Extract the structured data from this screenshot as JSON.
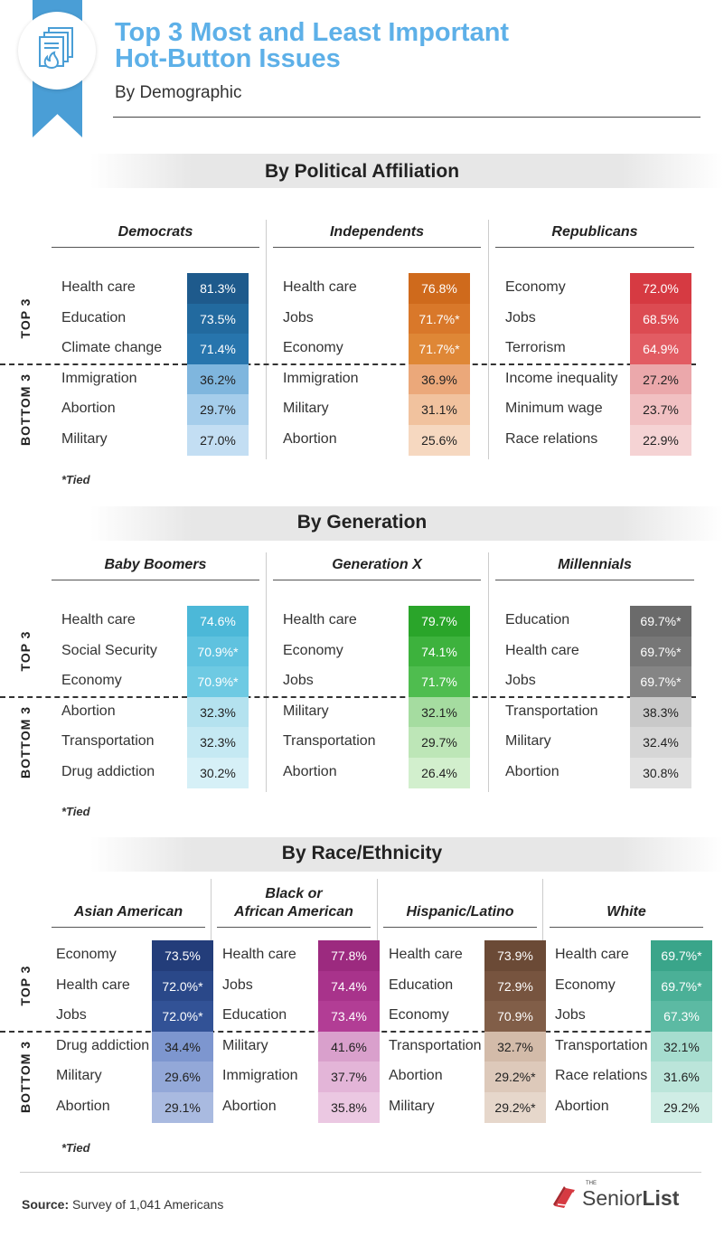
{
  "header": {
    "title_line1": "Top 3 Most and Least Important",
    "title_line2": "Hot-Button Issues",
    "subtitle": "By Demographic",
    "icon": "documents-fire-icon"
  },
  "labels": {
    "top": "TOP 3",
    "bottom": "BOTTOM 3",
    "tied": "*Tied"
  },
  "sections": [
    {
      "title": "By Political Affiliation",
      "groups": [
        {
          "name": "Democrats",
          "rows": [
            {
              "issue": "Health care",
              "value": "81.3%"
            },
            {
              "issue": "Education",
              "value": "73.5%"
            },
            {
              "issue": "Climate change",
              "value": "71.4%"
            },
            {
              "issue": "Immigration",
              "value": "36.2%"
            },
            {
              "issue": "Abortion",
              "value": "29.7%"
            },
            {
              "issue": "Military",
              "value": "27.0%"
            }
          ],
          "colors": [
            "#1e5a8c",
            "#226a9f",
            "#2775ad",
            "#7fb6de",
            "#a5cdeb",
            "#c3def3"
          ],
          "text": [
            "#fff",
            "#fff",
            "#fff",
            "#222",
            "#222",
            "#222"
          ]
        },
        {
          "name": "Independents",
          "rows": [
            {
              "issue": "Health care",
              "value": "76.8%"
            },
            {
              "issue": "Jobs",
              "value": "71.7%*"
            },
            {
              "issue": "Economy",
              "value": "71.7%*"
            },
            {
              "issue": "Immigration",
              "value": "36.9%"
            },
            {
              "issue": "Military",
              "value": "31.1%"
            },
            {
              "issue": "Abortion",
              "value": "25.6%"
            }
          ],
          "colors": [
            "#cf6a1c",
            "#d9782a",
            "#df8736",
            "#eba87a",
            "#f1c29e",
            "#f6d8c0"
          ],
          "text": [
            "#fff",
            "#fff",
            "#fff",
            "#222",
            "#222",
            "#222"
          ]
        },
        {
          "name": "Republicans",
          "rows": [
            {
              "issue": "Economy",
              "value": "72.0%"
            },
            {
              "issue": "Jobs",
              "value": "68.5%"
            },
            {
              "issue": "Terrorism",
              "value": "64.9%"
            },
            {
              "issue": "Income inequality",
              "value": "27.2%"
            },
            {
              "issue": "Minimum wage",
              "value": "23.7%"
            },
            {
              "issue": "Race relations",
              "value": "22.9%"
            }
          ],
          "colors": [
            "#d63a42",
            "#dc4b52",
            "#e25c63",
            "#eba8ab",
            "#f1c0c2",
            "#f5d3d4"
          ],
          "text": [
            "#fff",
            "#fff",
            "#fff",
            "#222",
            "#222",
            "#222"
          ]
        }
      ]
    },
    {
      "title": "By Generation",
      "groups": [
        {
          "name": "Baby Boomers",
          "rows": [
            {
              "issue": "Health care",
              "value": "74.6%"
            },
            {
              "issue": "Social Security",
              "value": "70.9%*"
            },
            {
              "issue": "Economy",
              "value": "70.9%*"
            },
            {
              "issue": "Abortion",
              "value": "32.3%"
            },
            {
              "issue": "Transportation",
              "value": "32.3%"
            },
            {
              "issue": "Drug addiction",
              "value": "30.2%"
            }
          ],
          "colors": [
            "#4cb8d8",
            "#5fc2df",
            "#6ecae3",
            "#b4e2ef",
            "#c5e9f3",
            "#d6f0f7"
          ],
          "text": [
            "#fff",
            "#fff",
            "#fff",
            "#222",
            "#222",
            "#222"
          ]
        },
        {
          "name": "Generation X",
          "rows": [
            {
              "issue": "Health care",
              "value": "79.7%"
            },
            {
              "issue": "Economy",
              "value": "74.1%"
            },
            {
              "issue": "Jobs",
              "value": "71.7%"
            },
            {
              "issue": "Military",
              "value": "32.1%"
            },
            {
              "issue": "Transportation",
              "value": "29.7%"
            },
            {
              "issue": "Abortion",
              "value": "26.4%"
            }
          ],
          "colors": [
            "#2aa52a",
            "#3db23d",
            "#4fbd4f",
            "#a5dca0",
            "#bde6b7",
            "#d2efcd"
          ],
          "text": [
            "#fff",
            "#fff",
            "#fff",
            "#222",
            "#222",
            "#222"
          ]
        },
        {
          "name": "Millennials",
          "rows": [
            {
              "issue": "Education",
              "value": "69.7%*"
            },
            {
              "issue": "Health care",
              "value": "69.7%*"
            },
            {
              "issue": "Jobs",
              "value": "69.7%*"
            },
            {
              "issue": "Transportation",
              "value": "38.3%"
            },
            {
              "issue": "Military",
              "value": "32.4%"
            },
            {
              "issue": "Abortion",
              "value": "30.8%"
            }
          ],
          "colors": [
            "#6b6b6b",
            "#777777",
            "#858585",
            "#c9c9c9",
            "#d6d6d6",
            "#e2e2e2"
          ],
          "text": [
            "#fff",
            "#fff",
            "#fff",
            "#222",
            "#222",
            "#222"
          ]
        }
      ]
    },
    {
      "title": "By Race/Ethnicity",
      "groups": [
        {
          "name": "Asian American",
          "rows": [
            {
              "issue": "Economy",
              "value": "73.5%"
            },
            {
              "issue": "Health care",
              "value": "72.0%*"
            },
            {
              "issue": "Jobs",
              "value": "72.0%*"
            },
            {
              "issue": "Drug addiction",
              "value": "34.4%"
            },
            {
              "issue": "Military",
              "value": "29.6%"
            },
            {
              "issue": "Abortion",
              "value": "29.1%"
            }
          ],
          "colors": [
            "#233d7a",
            "#2a4889",
            "#325296",
            "#7d96cf",
            "#93a8d8",
            "#a9bae0"
          ],
          "text": [
            "#fff",
            "#fff",
            "#fff",
            "#222",
            "#222",
            "#222"
          ]
        },
        {
          "name_line1": "Black or",
          "name": "African American",
          "rows": [
            {
              "issue": "Health care",
              "value": "77.8%"
            },
            {
              "issue": "Jobs",
              "value": "74.4%"
            },
            {
              "issue": "Education",
              "value": "73.4%"
            },
            {
              "issue": "Military",
              "value": "41.6%"
            },
            {
              "issue": "Immigration",
              "value": "37.7%"
            },
            {
              "issue": "Abortion",
              "value": "35.8%"
            }
          ],
          "colors": [
            "#9c2a7f",
            "#a8338b",
            "#b23d95",
            "#d9a0cc",
            "#e3b5d8",
            "#ebc8e2"
          ],
          "text": [
            "#fff",
            "#fff",
            "#fff",
            "#222",
            "#222",
            "#222"
          ]
        },
        {
          "name": "Hispanic/Latino",
          "rows": [
            {
              "issue": "Health care",
              "value": "73.9%"
            },
            {
              "issue": "Education",
              "value": "72.9%"
            },
            {
              "issue": "Economy",
              "value": "70.9%"
            },
            {
              "issue": "Transportation",
              "value": "32.7%"
            },
            {
              "issue": "Abortion",
              "value": "29.2%*"
            },
            {
              "issue": "Military",
              "value": "29.2%*"
            }
          ],
          "colors": [
            "#6b4a36",
            "#77543f",
            "#815e48",
            "#d3bba9",
            "#ddc9ba",
            "#e6d7cb"
          ],
          "text": [
            "#fff",
            "#fff",
            "#fff",
            "#222",
            "#222",
            "#222"
          ]
        },
        {
          "name": "White",
          "rows": [
            {
              "issue": "Health care",
              "value": "69.7%*"
            },
            {
              "issue": "Economy",
              "value": "69.7%*"
            },
            {
              "issue": "Jobs",
              "value": "67.3%"
            },
            {
              "issue": "Transportation",
              "value": "32.1%"
            },
            {
              "issue": "Race relations",
              "value": "31.6%"
            },
            {
              "issue": "Abortion",
              "value": "29.2%"
            }
          ],
          "colors": [
            "#3aa58a",
            "#4bb097",
            "#5cbaa3",
            "#a6ddcf",
            "#bbe5da",
            "#cfede5"
          ],
          "text": [
            "#fff",
            "#fff",
            "#fff",
            "#222",
            "#222",
            "#222"
          ]
        }
      ]
    }
  ],
  "footer": {
    "source_label": "Source:",
    "source_text": " Survey of 1,041 Americans",
    "logo_the": "THE",
    "logo_senior": "Senior",
    "logo_list": "List"
  }
}
